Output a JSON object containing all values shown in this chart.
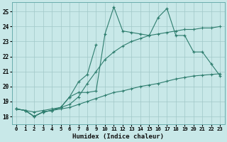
{
  "xlabel": "Humidex (Indice chaleur)",
  "xlim": [
    -0.5,
    23.5
  ],
  "ylim": [
    17.5,
    25.6
  ],
  "xticks": [
    0,
    1,
    2,
    3,
    4,
    5,
    6,
    7,
    8,
    9,
    10,
    11,
    12,
    13,
    14,
    15,
    16,
    17,
    18,
    19,
    20,
    21,
    22,
    23
  ],
  "yticks": [
    18,
    19,
    20,
    21,
    22,
    23,
    24,
    25
  ],
  "bg_color": "#c8e8e8",
  "line_color": "#2e7d6e",
  "grid_color": "#a0c8c8",
  "line1_x": [
    0,
    1,
    2,
    3,
    4,
    5,
    6,
    7,
    8,
    9,
    10,
    11,
    12,
    13,
    14,
    15,
    16,
    17,
    18,
    19,
    20,
    21,
    22,
    23
  ],
  "line1_y": [
    18.5,
    18.4,
    18.0,
    18.3,
    18.4,
    18.6,
    19.3,
    19.6,
    19.6,
    19.7,
    23.5,
    25.3,
    23.7,
    23.6,
    23.5,
    23.4,
    24.6,
    25.2,
    23.4,
    23.4,
    22.3,
    22.3,
    21.5,
    20.7
  ],
  "line2_x": [
    0,
    1,
    2,
    3,
    4,
    5,
    6,
    7,
    8,
    9,
    10,
    11,
    12,
    13,
    14,
    15,
    16,
    17,
    18,
    19,
    20,
    21,
    22,
    23
  ],
  "line2_y": [
    18.5,
    18.4,
    18.3,
    18.4,
    18.5,
    18.6,
    18.8,
    19.3,
    20.2,
    21.0,
    21.8,
    22.3,
    22.7,
    23.0,
    23.2,
    23.4,
    23.5,
    23.6,
    23.7,
    23.8,
    23.8,
    23.9,
    23.9,
    24.0
  ],
  "line3_x": [
    0,
    1,
    2,
    3,
    4,
    5,
    6,
    7,
    8,
    9,
    10,
    11,
    12,
    13,
    14,
    15,
    16,
    17,
    18,
    19,
    20,
    21,
    22,
    23
  ],
  "line3_y": [
    18.5,
    18.4,
    18.0,
    18.3,
    18.4,
    18.5,
    18.6,
    18.8,
    19.0,
    19.2,
    19.4,
    19.6,
    19.7,
    19.85,
    20.0,
    20.1,
    20.2,
    20.35,
    20.5,
    20.6,
    20.7,
    20.75,
    20.8,
    20.85
  ],
  "line4_x": [
    0,
    1,
    2,
    3,
    4,
    5,
    6,
    7,
    8,
    9
  ],
  "line4_y": [
    18.5,
    18.4,
    18.0,
    18.3,
    18.4,
    18.6,
    19.3,
    20.3,
    20.8,
    22.8
  ]
}
